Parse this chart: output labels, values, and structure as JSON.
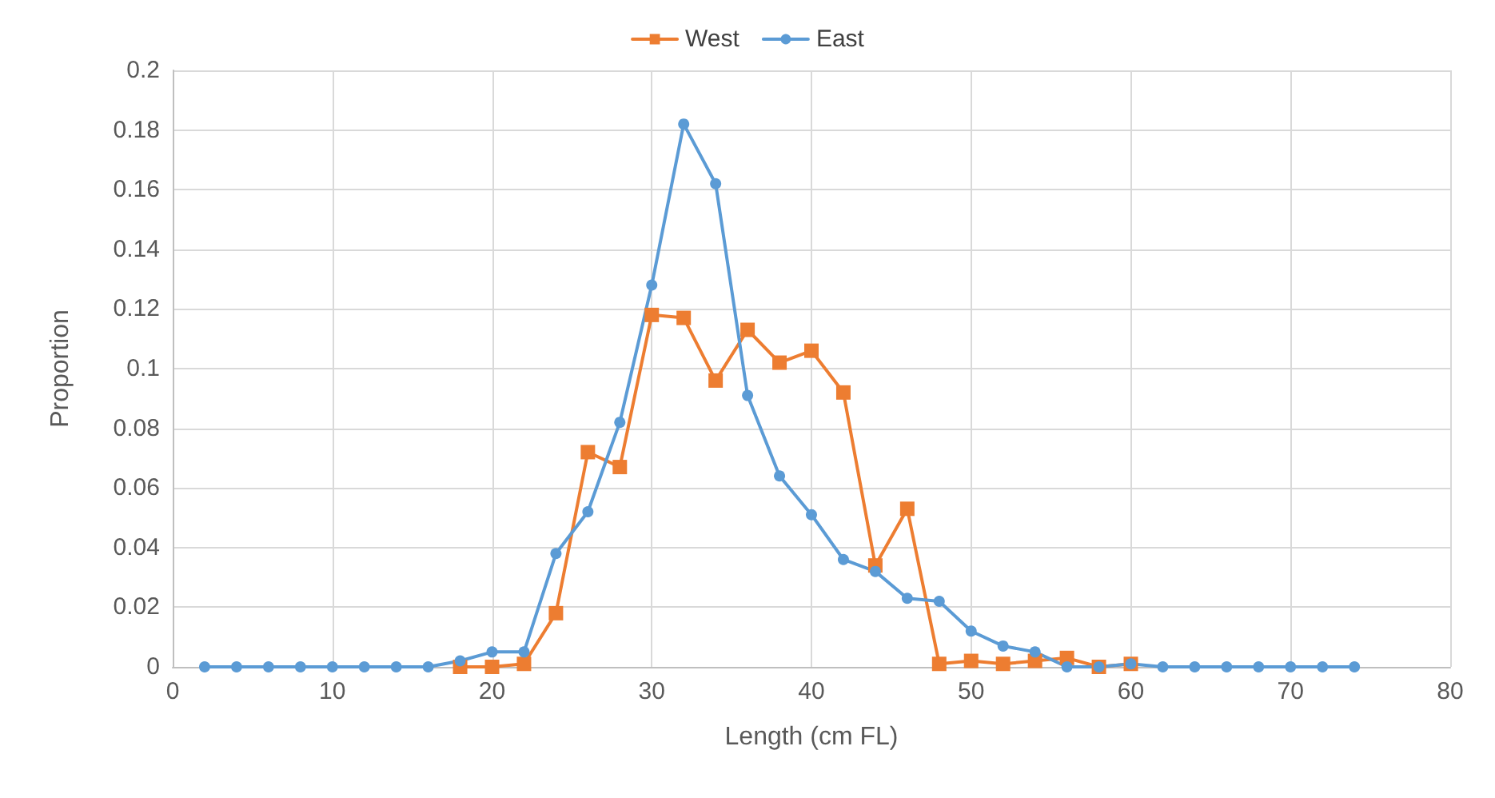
{
  "chart_data": {
    "type": "line",
    "xlabel": "Length (cm FL)",
    "ylabel": "Proportion",
    "xlim": [
      0,
      80
    ],
    "xticks": [
      0,
      10,
      20,
      30,
      40,
      50,
      60,
      70,
      80
    ],
    "ylim": [
      0,
      0.2
    ],
    "yticks": [
      0,
      0.02,
      0.04,
      0.06,
      0.08,
      0.1,
      0.12,
      0.14,
      0.16,
      0.18,
      0.2
    ],
    "grid": true,
    "legend": "top",
    "line_style": "solid",
    "series": [
      {
        "name": "West",
        "color": "#ed7d31",
        "marker": "square",
        "x": [
          18,
          20,
          22,
          24,
          26,
          28,
          30,
          32,
          34,
          36,
          38,
          40,
          42,
          44,
          46,
          48,
          50,
          52,
          54,
          56,
          58,
          60
        ],
        "values": [
          0,
          0,
          0.001,
          0.018,
          0.072,
          0.067,
          0.118,
          0.117,
          0.096,
          0.113,
          0.102,
          0.106,
          0.092,
          0.034,
          0.053,
          0.001,
          0.002,
          0.001,
          0.002,
          0.003,
          0,
          0.001
        ]
      },
      {
        "name": "East",
        "color": "#5b9bd5",
        "marker": "circle",
        "x": [
          2,
          4,
          6,
          8,
          10,
          12,
          14,
          16,
          18,
          20,
          22,
          24,
          26,
          28,
          30,
          32,
          34,
          36,
          38,
          40,
          42,
          44,
          46,
          48,
          50,
          52,
          54,
          56,
          58,
          60,
          62,
          64,
          66,
          68,
          70,
          72,
          74
        ],
        "values": [
          0,
          0,
          0,
          0,
          0,
          0,
          0,
          0,
          0.002,
          0.005,
          0.005,
          0.038,
          0.052,
          0.082,
          0.128,
          0.182,
          0.162,
          0.091,
          0.064,
          0.051,
          0.036,
          0.032,
          0.023,
          0.022,
          0.012,
          0.007,
          0.005,
          0,
          0,
          0.001,
          0,
          0,
          0,
          0,
          0,
          0,
          0
        ]
      }
    ]
  }
}
